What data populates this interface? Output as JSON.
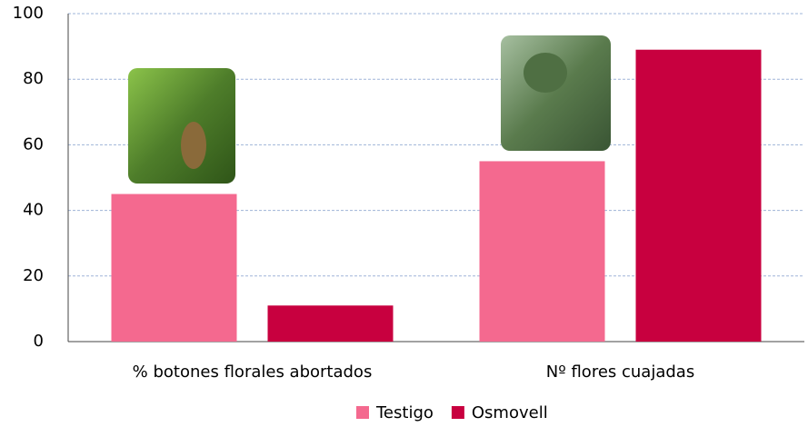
{
  "chart_data": {
    "type": "bar",
    "categories": [
      "% botones florales abortados",
      "Nº flores cuajadas"
    ],
    "series": [
      {
        "name": "Testigo",
        "color": "#f4698f",
        "values": [
          45,
          55
        ]
      },
      {
        "name": "Osmovell",
        "color": "#c8003f",
        "values": [
          11,
          89
        ]
      }
    ],
    "ylim": [
      0,
      100
    ],
    "yticks": [
      0,
      20,
      40,
      60,
      80,
      100
    ],
    "grid": true,
    "legend": "bottom"
  }
}
